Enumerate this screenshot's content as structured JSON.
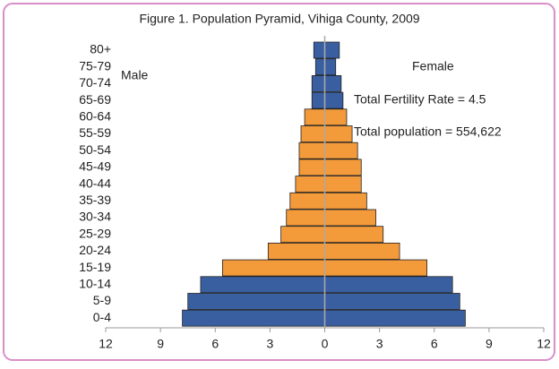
{
  "chart_data": {
    "type": "pyramid",
    "title": "Figure 1. Population Pyramid, Vihiga County, 2009",
    "annotations": [
      "Total Fertility Rate = 4.5",
      "Total population = 554,622"
    ],
    "categories": [
      "0-4",
      "5-9",
      "10-14",
      "15-19",
      "20-24",
      "25-29",
      "30-34",
      "35-39",
      "40-44",
      "45-49",
      "50-54",
      "55-59",
      "60-64",
      "65-69",
      "70-74",
      "75-79",
      "80+"
    ],
    "series": [
      {
        "name": "Male",
        "colors": [
          "#3a5fa0",
          "#3a5fa0",
          "#3a5fa0",
          "#f39a3a",
          "#f39a3a",
          "#f39a3a",
          "#f39a3a",
          "#f39a3a",
          "#f39a3a",
          "#f39a3a",
          "#f39a3a",
          "#f39a3a",
          "#f39a3a",
          "#3a5fa0",
          "#3a5fa0",
          "#3a5fa0",
          "#3a5fa0"
        ],
        "values": [
          -7.8,
          -7.5,
          -6.8,
          -5.6,
          -3.1,
          -2.4,
          -2.1,
          -1.9,
          -1.6,
          -1.4,
          -1.4,
          -1.3,
          -1.1,
          -0.7,
          -0.7,
          -0.5,
          -0.6
        ]
      },
      {
        "name": "Female",
        "colors": [
          "#3a5fa0",
          "#3a5fa0",
          "#3a5fa0",
          "#f39a3a",
          "#f39a3a",
          "#f39a3a",
          "#f39a3a",
          "#f39a3a",
          "#f39a3a",
          "#f39a3a",
          "#f39a3a",
          "#f39a3a",
          "#f39a3a",
          "#3a5fa0",
          "#3a5fa0",
          "#3a5fa0",
          "#3a5fa0"
        ],
        "values": [
          7.7,
          7.4,
          7.0,
          5.6,
          4.1,
          3.2,
          2.8,
          2.3,
          2.0,
          2.0,
          1.8,
          1.5,
          1.2,
          1.0,
          0.9,
          0.6,
          0.8
        ]
      }
    ],
    "xlim": [
      -12,
      12
    ],
    "xticks": [
      {
        "value": -12,
        "label": "12"
      },
      {
        "value": -9,
        "label": "9"
      },
      {
        "value": -6,
        "label": "6"
      },
      {
        "value": -3,
        "label": "3"
      },
      0,
      3,
      6,
      9,
      12
    ]
  }
}
